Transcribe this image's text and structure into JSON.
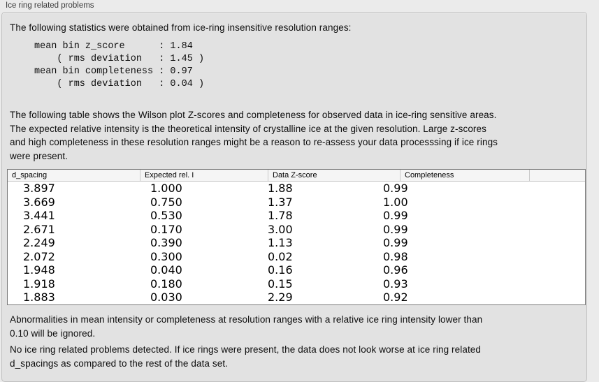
{
  "panel": {
    "title": "Ice ring related problems"
  },
  "intro": "The following statistics were obtained from ice-ring insensitive resolution ranges:",
  "stats_text": "mean bin z_score      : 1.84\n    ( rms deviation   : 1.45 )\nmean bin completeness : 0.97\n    ( rms deviation   : 0.04 )",
  "stats": {
    "mean_bin_z_score": "1.84",
    "z_score_rms_deviation": "1.45",
    "mean_bin_completeness": "0.97",
    "completeness_rms_deviation": "0.04"
  },
  "description": "The following table shows the Wilson plot Z-scores and completeness for observed data in ice-ring sensitive areas.\nThe expected relative intensity is the theoretical intensity of crystalline ice at the given resolution. Large z-scores\nand high completeness in these resolution ranges might be a reason to re-assess your data processsing if ice rings\nwere present.",
  "table": {
    "columns": [
      "d_spacing",
      "Expected rel. I",
      "Data Z-score",
      "Completeness",
      ""
    ],
    "rows": [
      [
        "3.897",
        "1.000",
        "1.88",
        "0.99"
      ],
      [
        "3.669",
        "0.750",
        "1.37",
        "1.00"
      ],
      [
        "3.441",
        "0.530",
        "1.78",
        "0.99"
      ],
      [
        "2.671",
        "0.170",
        "3.00",
        "0.99"
      ],
      [
        "2.249",
        "0.390",
        "1.13",
        "0.99"
      ],
      [
        "2.072",
        "0.300",
        "0.02",
        "0.98"
      ],
      [
        "1.948",
        "0.040",
        "0.16",
        "0.96"
      ],
      [
        "1.918",
        "0.180",
        "0.15",
        "0.93"
      ],
      [
        "1.883",
        "0.030",
        "2.29",
        "0.92"
      ]
    ]
  },
  "note": "Abnormalities in mean intensity or completeness at resolution ranges with a relative ice ring intensity lower than\n0.10 will be ignored.",
  "conclusion": "No ice ring related problems detected. If ice rings were present, the data does not look worse at ice ring related\nd_spacings as compared to the rest of the data set.",
  "colors": {
    "page_bg": "#ebebeb",
    "panel_bg": "#e2e2e2",
    "table_border": "#787878",
    "header_bg": "#f5f5f5"
  }
}
